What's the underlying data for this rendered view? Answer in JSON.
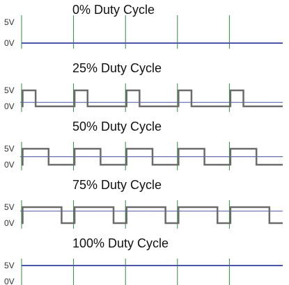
{
  "chart_data": {
    "type": "line",
    "unit_label": "V",
    "period_count": 5,
    "panels": [
      {
        "title": "0% Duty Cycle",
        "duty_cycle_percent": 0,
        "average_voltage": 0,
        "y_ticks": [
          "5V",
          "0V"
        ],
        "ylim": [
          0,
          5
        ]
      },
      {
        "title": "25% Duty Cycle",
        "duty_cycle_percent": 25,
        "average_voltage": 1.25,
        "y_ticks": [
          "5V",
          "0V"
        ],
        "ylim": [
          0,
          5
        ]
      },
      {
        "title": "50% Duty Cycle",
        "duty_cycle_percent": 50,
        "average_voltage": 2.5,
        "y_ticks": [
          "5V",
          "0V"
        ],
        "ylim": [
          0,
          5
        ]
      },
      {
        "title": "75% Duty Cycle",
        "duty_cycle_percent": 75,
        "average_voltage": 3.75,
        "y_ticks": [
          "5V",
          "0V"
        ],
        "ylim": [
          0,
          5
        ]
      },
      {
        "title": "100% Duty Cycle",
        "duty_cycle_percent": 100,
        "average_voltage": 5,
        "y_ticks": [
          "5V",
          "0V"
        ],
        "ylim": [
          0,
          5
        ]
      }
    ],
    "colors": {
      "waveform": "#6b6b6b",
      "average_line": "#4a57a8",
      "gridline": "#2e8b3e",
      "baseline": "#4a57a8"
    }
  }
}
